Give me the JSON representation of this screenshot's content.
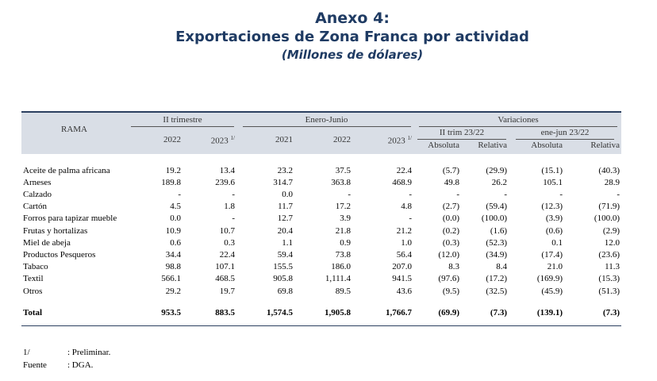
{
  "title": {
    "line1": "Anexo 4:",
    "line2": "Exportaciones de Zona Franca por actividad",
    "line3": "(Millones de dólares)"
  },
  "header": {
    "rama": "RAMA",
    "group_trim": "II trimestre",
    "group_ene": "Enero-Junio",
    "group_var": "Variaciones",
    "sub_var_trim": "II trim 23/22",
    "sub_var_ene": "ene-jun 23/22",
    "y2022": "2022",
    "y2023": "2023",
    "y2021": "2021",
    "y2022b": "2022",
    "y2023b": "2023",
    "sup": "1/",
    "absoluta": "Absoluta",
    "relativa": "Relativa",
    "absoluta2": "Absoluta",
    "relativa2": "Relativa"
  },
  "rows": [
    {
      "rama": "Aceite de palma africana",
      "t22": "19.2",
      "t23": "13.4",
      "e21": "23.2",
      "e22": "37.5",
      "e23": "22.4",
      "ta": "(5.7)",
      "tr": "(29.9)",
      "ea": "(15.1)",
      "er": "(40.3)"
    },
    {
      "rama": "Arneses",
      "t22": "189.8",
      "t23": "239.6",
      "e21": "314.7",
      "e22": "363.8",
      "e23": "468.9",
      "ta": "49.8",
      "tr": "26.2",
      "ea": "105.1",
      "er": "28.9"
    },
    {
      "rama": "Calzado",
      "t22": "-",
      "t23": "-",
      "e21": "0.0",
      "e22": "-",
      "e23": "-",
      "ta": "-",
      "tr": "-",
      "ea": "-",
      "er": "-"
    },
    {
      "rama": "Cartón",
      "t22": "4.5",
      "t23": "1.8",
      "e21": "11.7",
      "e22": "17.2",
      "e23": "4.8",
      "ta": "(2.7)",
      "tr": "(59.4)",
      "ea": "(12.3)",
      "er": "(71.9)"
    },
    {
      "rama": "Forros para tapizar mueble",
      "t22": "0.0",
      "t23": "-",
      "e21": "12.7",
      "e22": "3.9",
      "e23": "-",
      "ta": "(0.0)",
      "tr": "(100.0)",
      "ea": "(3.9)",
      "er": "(100.0)"
    },
    {
      "rama": "Frutas y hortalizas",
      "t22": "10.9",
      "t23": "10.7",
      "e21": "20.4",
      "e22": "21.8",
      "e23": "21.2",
      "ta": "(0.2)",
      "tr": "(1.6)",
      "ea": "(0.6)",
      "er": "(2.9)"
    },
    {
      "rama": "Miel de abeja",
      "t22": "0.6",
      "t23": "0.3",
      "e21": "1.1",
      "e22": "0.9",
      "e23": "1.0",
      "ta": "(0.3)",
      "tr": "(52.3)",
      "ea": "0.1",
      "er": "12.0"
    },
    {
      "rama": "Productos Pesqueros",
      "t22": "34.4",
      "t23": "22.4",
      "e21": "59.4",
      "e22": "73.8",
      "e23": "56.4",
      "ta": "(12.0)",
      "tr": "(34.9)",
      "ea": "(17.4)",
      "er": "(23.6)"
    },
    {
      "rama": "Tabaco",
      "t22": "98.8",
      "t23": "107.1",
      "e21": "155.5",
      "e22": "186.0",
      "e23": "207.0",
      "ta": "8.3",
      "tr": "8.4",
      "ea": "21.0",
      "er": "11.3"
    },
    {
      "rama": "Textil",
      "t22": "566.1",
      "t23": "468.5",
      "e21": "905.8",
      "e22": "1,111.4",
      "e23": "941.5",
      "ta": "(97.6)",
      "tr": "(17.2)",
      "ea": "(169.9)",
      "er": "(15.3)"
    },
    {
      "rama": "Otros",
      "t22": "29.2",
      "t23": "19.7",
      "e21": "69.8",
      "e22": "89.5",
      "e23": "43.6",
      "ta": "(9.5)",
      "tr": "(32.5)",
      "ea": "(45.9)",
      "er": "(51.3)"
    }
  ],
  "total": {
    "rama": "Total",
    "t22": "953.5",
    "t23": "883.5",
    "e21": "1,574.5",
    "e22": "1,905.8",
    "e23": "1,766.7",
    "ta": "(69.9)",
    "tr": "(7.3)",
    "ea": "(139.1)",
    "er": "(7.3)"
  },
  "notes": [
    {
      "key": "1/",
      "text": ": Preliminar."
    },
    {
      "key": "Fuente",
      "text": ": DGA."
    }
  ]
}
